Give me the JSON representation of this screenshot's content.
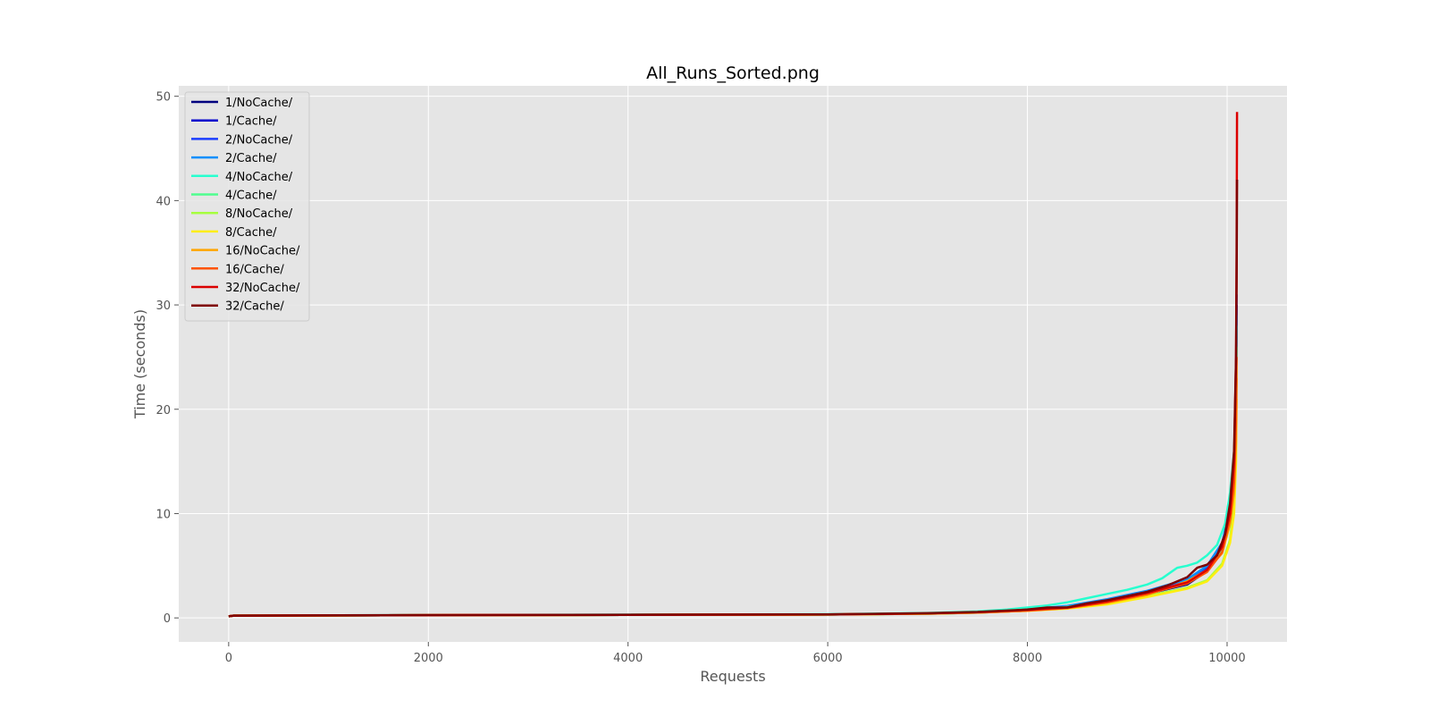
{
  "chart_data": {
    "type": "line",
    "title": "All_Runs_Sorted.png",
    "xlabel": "Requests",
    "ylabel": "Time (seconds)",
    "xlim": [
      -500,
      10600
    ],
    "ylim": [
      -2.3,
      51
    ],
    "xticks": [
      0,
      2000,
      4000,
      6000,
      8000,
      10000
    ],
    "yticks": [
      0,
      10,
      20,
      30,
      40,
      50
    ],
    "grid": true,
    "legend_position": "upper-left",
    "background": "#e5e5e5",
    "series": [
      {
        "name": "1/NoCache/",
        "color": "#00007f",
        "points": [
          [
            0,
            0.15
          ],
          [
            50,
            0.22
          ],
          [
            2000,
            0.26
          ],
          [
            6000,
            0.32
          ],
          [
            7000,
            0.4
          ],
          [
            7500,
            0.5
          ],
          [
            8000,
            0.7
          ],
          [
            8400,
            1.0
          ],
          [
            8800,
            1.5
          ],
          [
            9200,
            2.3
          ],
          [
            9600,
            3.2
          ],
          [
            9800,
            4.5
          ],
          [
            9950,
            6.5
          ],
          [
            10030,
            9.5
          ],
          [
            10070,
            14
          ],
          [
            10090,
            22
          ],
          [
            10095,
            30
          ]
        ]
      },
      {
        "name": "1/Cache/",
        "color": "#0000cd",
        "points": [
          [
            0,
            0.15
          ],
          [
            50,
            0.22
          ],
          [
            2000,
            0.26
          ],
          [
            6000,
            0.32
          ],
          [
            7000,
            0.42
          ],
          [
            7500,
            0.55
          ],
          [
            8000,
            0.75
          ],
          [
            8400,
            1.05
          ],
          [
            8800,
            1.6
          ],
          [
            9200,
            2.4
          ],
          [
            9600,
            3.4
          ],
          [
            9800,
            4.7
          ],
          [
            9950,
            6.6
          ],
          [
            10030,
            9.6
          ],
          [
            10070,
            14
          ],
          [
            10090,
            21
          ],
          [
            10095,
            28
          ]
        ]
      },
      {
        "name": "2/NoCache/",
        "color": "#1c3eff",
        "points": [
          [
            0,
            0.15
          ],
          [
            50,
            0.22
          ],
          [
            2000,
            0.26
          ],
          [
            6000,
            0.33
          ],
          [
            7000,
            0.43
          ],
          [
            7500,
            0.55
          ],
          [
            8000,
            0.8
          ],
          [
            8400,
            1.1
          ],
          [
            8800,
            1.7
          ],
          [
            9200,
            2.5
          ],
          [
            9600,
            3.6
          ],
          [
            9800,
            4.9
          ],
          [
            9950,
            6.9
          ],
          [
            10030,
            10
          ],
          [
            10070,
            15
          ],
          [
            10090,
            23
          ],
          [
            10095,
            31
          ]
        ]
      },
      {
        "name": "2/Cache/",
        "color": "#0b8ffb",
        "points": [
          [
            0,
            0.15
          ],
          [
            50,
            0.22
          ],
          [
            2000,
            0.26
          ],
          [
            6000,
            0.33
          ],
          [
            7000,
            0.43
          ],
          [
            7500,
            0.56
          ],
          [
            8000,
            0.82
          ],
          [
            8400,
            1.15
          ],
          [
            8800,
            1.8
          ],
          [
            9200,
            2.6
          ],
          [
            9600,
            3.7
          ],
          [
            9800,
            5.0
          ],
          [
            9950,
            7.2
          ],
          [
            10030,
            10.5
          ],
          [
            10070,
            15
          ],
          [
            10090,
            22
          ],
          [
            10095,
            29
          ]
        ]
      },
      {
        "name": "4/NoCache/",
        "color": "#27ffcf",
        "points": [
          [
            0,
            0.15
          ],
          [
            50,
            0.22
          ],
          [
            2000,
            0.27
          ],
          [
            6000,
            0.36
          ],
          [
            7000,
            0.48
          ],
          [
            7500,
            0.62
          ],
          [
            7800,
            0.8
          ],
          [
            8000,
            1.0
          ],
          [
            8200,
            1.2
          ],
          [
            8400,
            1.5
          ],
          [
            8600,
            1.9
          ],
          [
            8800,
            2.3
          ],
          [
            9000,
            2.7
          ],
          [
            9200,
            3.2
          ],
          [
            9350,
            3.8
          ],
          [
            9500,
            4.8
          ],
          [
            9600,
            5.0
          ],
          [
            9700,
            5.3
          ],
          [
            9800,
            6.0
          ],
          [
            9900,
            7.0
          ],
          [
            9980,
            9.0
          ],
          [
            10030,
            12
          ],
          [
            10070,
            16
          ],
          [
            10090,
            22
          ],
          [
            10095,
            28
          ]
        ]
      },
      {
        "name": "4/Cache/",
        "color": "#4fff8f",
        "points": [
          [
            0,
            0.15
          ],
          [
            50,
            0.22
          ],
          [
            2000,
            0.26
          ],
          [
            6000,
            0.33
          ],
          [
            7000,
            0.42
          ],
          [
            7500,
            0.54
          ],
          [
            8000,
            0.75
          ],
          [
            8400,
            1.05
          ],
          [
            8800,
            1.55
          ],
          [
            9200,
            2.3
          ],
          [
            9600,
            3.3
          ],
          [
            9800,
            4.5
          ],
          [
            9950,
            6.4
          ],
          [
            10030,
            9.2
          ],
          [
            10070,
            13
          ],
          [
            10090,
            19
          ],
          [
            10095,
            26
          ]
        ]
      },
      {
        "name": "8/NoCache/",
        "color": "#a6ff3f",
        "points": [
          [
            0,
            0.15
          ],
          [
            50,
            0.22
          ],
          [
            2000,
            0.26
          ],
          [
            6000,
            0.32
          ],
          [
            7000,
            0.4
          ],
          [
            7500,
            0.5
          ],
          [
            8000,
            0.7
          ],
          [
            8400,
            0.95
          ],
          [
            8800,
            1.4
          ],
          [
            9200,
            2.1
          ],
          [
            9600,
            2.9
          ],
          [
            9800,
            3.6
          ],
          [
            9950,
            5.2
          ],
          [
            10030,
            7.5
          ],
          [
            10070,
            11
          ],
          [
            10090,
            17
          ],
          [
            10095,
            24
          ]
        ]
      },
      {
        "name": "8/Cache/",
        "color": "#ffee10",
        "points": [
          [
            0,
            0.15
          ],
          [
            50,
            0.22
          ],
          [
            2000,
            0.26
          ],
          [
            6000,
            0.32
          ],
          [
            7000,
            0.4
          ],
          [
            7500,
            0.5
          ],
          [
            8000,
            0.68
          ],
          [
            8400,
            0.9
          ],
          [
            8800,
            1.3
          ],
          [
            9200,
            2.0
          ],
          [
            9600,
            2.8
          ],
          [
            9800,
            3.5
          ],
          [
            9950,
            5.0
          ],
          [
            10030,
            7.2
          ],
          [
            10070,
            10
          ],
          [
            10090,
            15
          ],
          [
            10095,
            21
          ]
        ]
      },
      {
        "name": "16/NoCache/",
        "color": "#ffa500",
        "points": [
          [
            0,
            0.15
          ],
          [
            50,
            0.22
          ],
          [
            2000,
            0.26
          ],
          [
            6000,
            0.32
          ],
          [
            7000,
            0.42
          ],
          [
            7500,
            0.52
          ],
          [
            8000,
            0.7
          ],
          [
            8400,
            0.95
          ],
          [
            8800,
            1.45
          ],
          [
            9200,
            2.2
          ],
          [
            9600,
            3.5
          ],
          [
            9800,
            4.6
          ],
          [
            9950,
            6.2
          ],
          [
            10030,
            9.0
          ],
          [
            10070,
            12
          ],
          [
            10090,
            17
          ],
          [
            10095,
            23
          ]
        ]
      },
      {
        "name": "16/Cache/",
        "color": "#ff5400",
        "points": [
          [
            0,
            0.15
          ],
          [
            50,
            0.22
          ],
          [
            2000,
            0.26
          ],
          [
            6000,
            0.32
          ],
          [
            7000,
            0.42
          ],
          [
            7500,
            0.52
          ],
          [
            8000,
            0.7
          ],
          [
            8400,
            0.95
          ],
          [
            8800,
            1.5
          ],
          [
            9200,
            2.3
          ],
          [
            9600,
            3.3
          ],
          [
            9800,
            4.4
          ],
          [
            9950,
            6.3
          ],
          [
            10030,
            9.5
          ],
          [
            10070,
            13
          ],
          [
            10090,
            19
          ],
          [
            10095,
            25
          ]
        ]
      },
      {
        "name": "32/NoCache/",
        "color": "#db0000",
        "points": [
          [
            0,
            0.15
          ],
          [
            50,
            0.22
          ],
          [
            2000,
            0.26
          ],
          [
            6000,
            0.33
          ],
          [
            7000,
            0.43
          ],
          [
            7500,
            0.55
          ],
          [
            8000,
            0.78
          ],
          [
            8400,
            1.0
          ],
          [
            8800,
            1.6
          ],
          [
            9200,
            2.4
          ],
          [
            9600,
            3.4
          ],
          [
            9800,
            4.6
          ],
          [
            9950,
            6.8
          ],
          [
            10030,
            10
          ],
          [
            10070,
            15
          ],
          [
            10090,
            25
          ],
          [
            10095,
            35
          ],
          [
            10100,
            48.5
          ]
        ]
      },
      {
        "name": "32/Cache/",
        "color": "#7f0000",
        "points": [
          [
            0,
            0.15
          ],
          [
            50,
            0.22
          ],
          [
            2000,
            0.27
          ],
          [
            6000,
            0.34
          ],
          [
            7000,
            0.45
          ],
          [
            7500,
            0.57
          ],
          [
            8000,
            0.8
          ],
          [
            8200,
            1.0
          ],
          [
            8400,
            1.0
          ],
          [
            8600,
            1.4
          ],
          [
            8800,
            1.7
          ],
          [
            9000,
            2.1
          ],
          [
            9200,
            2.5
          ],
          [
            9400,
            3.1
          ],
          [
            9600,
            3.9
          ],
          [
            9700,
            4.8
          ],
          [
            9800,
            5.1
          ],
          [
            9900,
            6.0
          ],
          [
            9980,
            8.0
          ],
          [
            10030,
            11
          ],
          [
            10070,
            16
          ],
          [
            10090,
            25
          ],
          [
            10095,
            32
          ],
          [
            10100,
            42
          ]
        ]
      }
    ]
  }
}
